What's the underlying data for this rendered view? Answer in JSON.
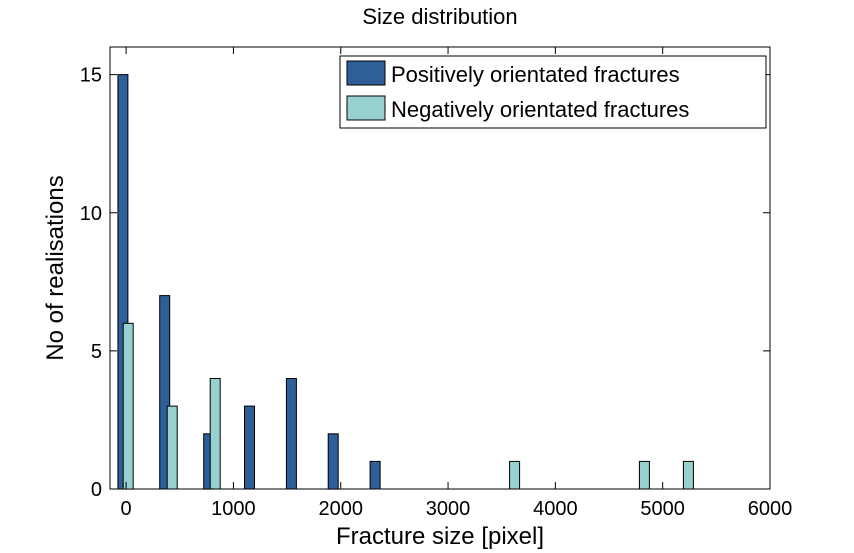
{
  "chart_data": {
    "type": "bar",
    "title": "Size distribution",
    "xlabel": "Fracture size [pixel]",
    "ylabel": "No of realisations",
    "xlim": [
      -150,
      6000
    ],
    "ylim": [
      0,
      16
    ],
    "xticks": [
      0,
      1000,
      2000,
      3000,
      4000,
      5000,
      6000
    ],
    "yticks": [
      0,
      5,
      10,
      15
    ],
    "legend_position": "top-right",
    "grid": false,
    "series": [
      {
        "name": "Positively orientated fractures",
        "color": "#2e5f99",
        "x": [
          -30,
          360,
          770,
          1150,
          1540,
          1930,
          2320
        ],
        "values": [
          15,
          7,
          2,
          3,
          4,
          2,
          1
        ]
      },
      {
        "name": "Negatively orientated fractures",
        "color": "#97d1cf",
        "x": [
          20,
          430,
          830,
          3620,
          4830,
          5240
        ],
        "values": [
          6,
          3,
          4,
          1,
          1,
          1
        ]
      }
    ]
  }
}
